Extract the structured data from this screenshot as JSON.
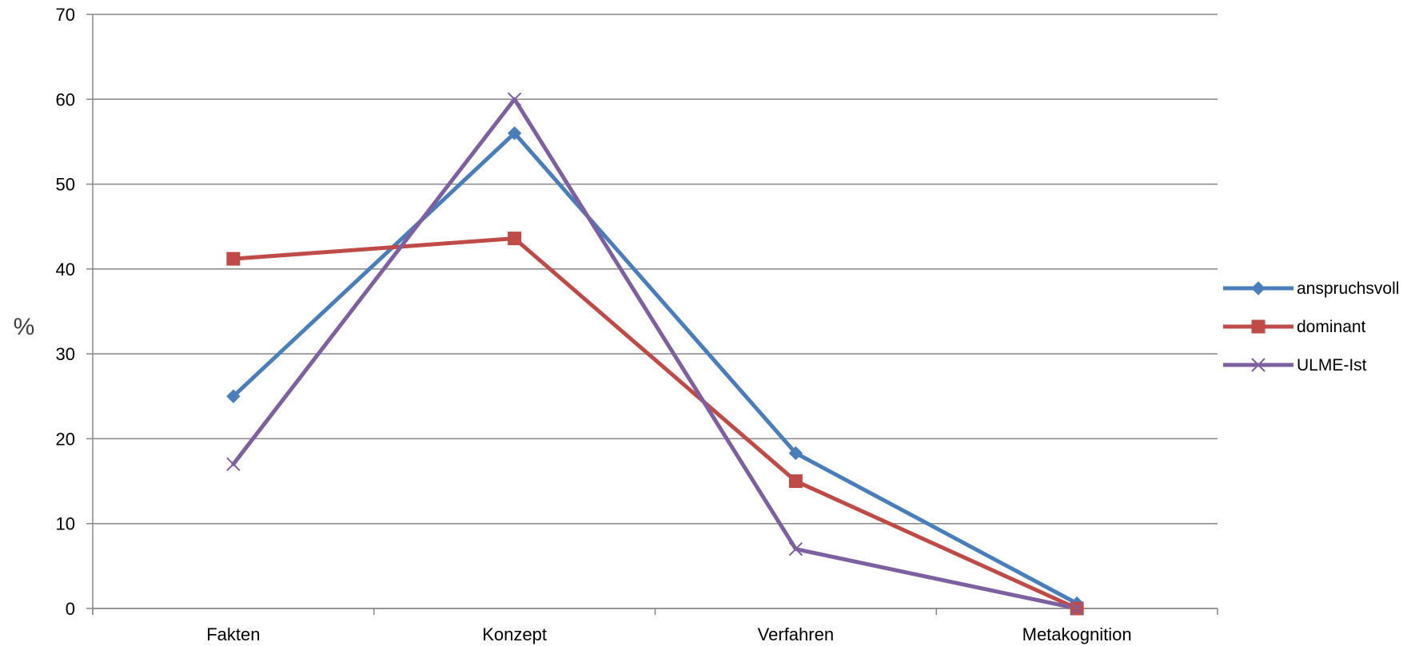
{
  "chart_data": {
    "type": "line",
    "title": "",
    "xlabel": "",
    "ylabel": "%",
    "ylim": [
      0,
      70
    ],
    "yticks": [
      0,
      10,
      20,
      30,
      40,
      50,
      60,
      70
    ],
    "grid": true,
    "legend_position": "right",
    "categories": [
      "Fakten",
      "Konzept",
      "Verfahren",
      "Metakognition"
    ],
    "series": [
      {
        "name": "anspruchsvoll",
        "color": "#4A7EBB",
        "marker": "diamond",
        "values": [
          25,
          56,
          18.3,
          0.6
        ]
      },
      {
        "name": "dominant",
        "color": "#BE4B48",
        "marker": "square",
        "values": [
          41.2,
          43.6,
          15,
          0
        ]
      },
      {
        "name": "ULME-Ist",
        "color": "#7D60A0",
        "marker": "x",
        "values": [
          17,
          60,
          7,
          0
        ]
      }
    ]
  }
}
